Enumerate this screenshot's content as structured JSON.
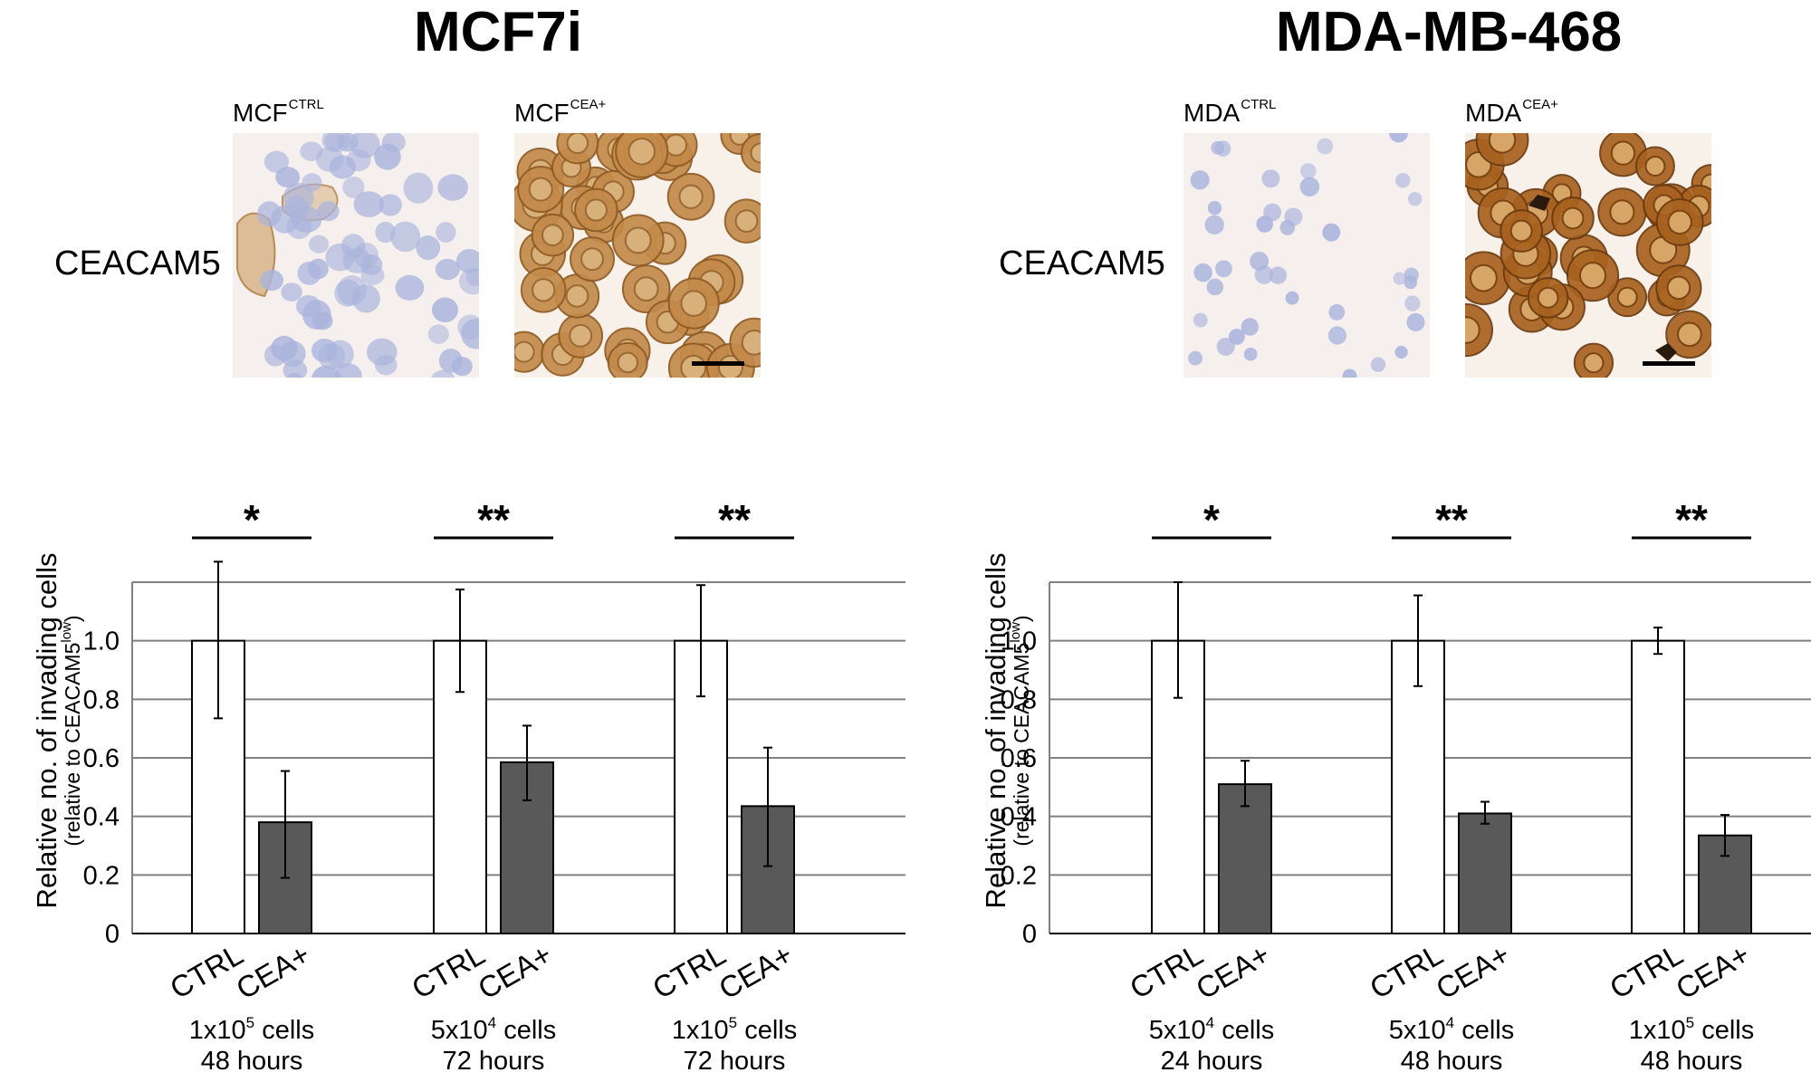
{
  "panels": [
    {
      "title": "MCF7i",
      "stain_label": "CEACAM5",
      "images": [
        {
          "base": "MCF",
          "sup": "CTRL",
          "stain": "mostly negative, few positive cells"
        },
        {
          "base": "MCF",
          "sup": "CEA+",
          "stain": "strong brown positive"
        }
      ]
    },
    {
      "title": "MDA-MB-468",
      "stain_label": "CEACAM5",
      "images": [
        {
          "base": "MDA",
          "sup": "CTRL",
          "stain": "negative"
        },
        {
          "base": "MDA",
          "sup": "CEA+",
          "stain": "strong brown positive"
        }
      ]
    }
  ],
  "colors": {
    "ctrl_fill": "#ffffff",
    "cea_fill": "#595959",
    "bar_stroke": "#000000",
    "grid": "#808080",
    "hematoxylin": "#aab4dc",
    "dab_brown": "#b4782d"
  },
  "chart_data": [
    {
      "type": "bar",
      "panel": "MCF7i",
      "ylabel": "Relative no. of invading cells",
      "ylabel_sub_pre": "(relative to CEACAM5",
      "ylabel_sub_sup": "low",
      "ylabel_sub_post": ")",
      "ylim": [
        0,
        1.2
      ],
      "yticks": [
        "0",
        "0.2",
        "0.4",
        "0.6",
        "0.8",
        "1.0"
      ],
      "yticks_values": [
        0,
        0.2,
        0.4,
        0.6,
        0.8,
        1.0
      ],
      "grid": true,
      "series_labels": [
        "CTRL",
        "CEA+"
      ],
      "groups": [
        {
          "cells_pre": "1x10",
          "cells_exp": "5",
          "cells_post": " cells",
          "time": "48 hours",
          "values": [
            1.0,
            0.38
          ],
          "err_low": [
            0.735,
            0.19
          ],
          "err_high": [
            1.27,
            0.555
          ],
          "sig": "*"
        },
        {
          "cells_pre": "5x10",
          "cells_exp": "4",
          "cells_post": " cells",
          "time": "72 hours",
          "values": [
            1.0,
            0.585
          ],
          "err_low": [
            0.825,
            0.455
          ],
          "err_high": [
            1.175,
            0.71
          ],
          "sig": "**"
        },
        {
          "cells_pre": "1x10",
          "cells_exp": "5",
          "cells_post": " cells",
          "time": "72 hours",
          "values": [
            1.0,
            0.435
          ],
          "err_low": [
            0.81,
            0.23
          ],
          "err_high": [
            1.19,
            0.635
          ],
          "sig": "**"
        }
      ]
    },
    {
      "type": "bar",
      "panel": "MDA-MB-468",
      "ylabel": "Relative no. of invading cells",
      "ylabel_sub_pre": "(relative to CEACAM5",
      "ylabel_sub_sup": "low",
      "ylabel_sub_post": ")",
      "ylim": [
        0,
        1.2
      ],
      "yticks": [
        "0",
        "0.2",
        "0.4",
        "0.6",
        "0.8",
        "1.0"
      ],
      "yticks_values": [
        0,
        0.2,
        0.4,
        0.6,
        0.8,
        1.0
      ],
      "grid": true,
      "series_labels": [
        "CTRL",
        "CEA+"
      ],
      "groups": [
        {
          "cells_pre": "5x10",
          "cells_exp": "4",
          "cells_post": " cells",
          "time": "24 hours",
          "values": [
            1.0,
            0.51
          ],
          "err_low": [
            0.805,
            0.435
          ],
          "err_high": [
            1.2,
            0.59
          ],
          "sig": "*"
        },
        {
          "cells_pre": "5x10",
          "cells_exp": "4",
          "cells_post": " cells",
          "time": "48 hours",
          "values": [
            1.0,
            0.41
          ],
          "err_low": [
            0.845,
            0.375
          ],
          "err_high": [
            1.155,
            0.45
          ],
          "sig": "**"
        },
        {
          "cells_pre": "1x10",
          "cells_exp": "5",
          "cells_post": " cells",
          "time": "48 hours",
          "values": [
            1.0,
            0.335
          ],
          "err_low": [
            0.955,
            0.265
          ],
          "err_high": [
            1.045,
            0.405
          ],
          "sig": "**"
        }
      ]
    }
  ]
}
